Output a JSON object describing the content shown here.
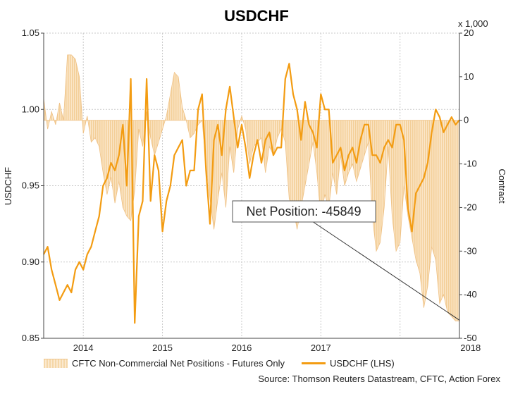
{
  "chart_data": {
    "type": "area+line",
    "title": "USDCHF",
    "ylabel_left": "USDCHF",
    "ylabel_right": "Contract",
    "right_multiplier": "x 1,000",
    "ylim_left": [
      0.85,
      1.05
    ],
    "ylim_right": [
      -50,
      20
    ],
    "yticks_left": [
      "0.85",
      "0.90",
      "0.95",
      "1.00",
      "1.05"
    ],
    "yticks_right": [
      "-50",
      "-40",
      "-30",
      "-20",
      "-10",
      "0",
      "10",
      "20"
    ],
    "x_ticks": [
      "2014",
      "2015",
      "2016",
      "2017",
      "2018"
    ],
    "xlim": [
      "2013-07",
      "2018-10"
    ],
    "grid": true,
    "legend_position": "bottom",
    "annotation": "Net Position: -45849",
    "series": [
      {
        "name": "CFTC Non-Commercial Net Positions - Futures Only",
        "kind": "area",
        "axis": "right",
        "color": "#f5d2a0",
        "x": [
          2013.5,
          2013.55,
          2013.6,
          2013.65,
          2013.7,
          2013.75,
          2013.8,
          2013.85,
          2013.9,
          2013.95,
          2014.0,
          2014.05,
          2014.1,
          2014.15,
          2014.2,
          2014.25,
          2014.3,
          2014.35,
          2014.4,
          2014.45,
          2014.5,
          2014.55,
          2014.6,
          2014.65,
          2014.7,
          2014.75,
          2014.8,
          2014.85,
          2014.9,
          2014.95,
          2015.0,
          2015.05,
          2015.1,
          2015.15,
          2015.2,
          2015.25,
          2015.3,
          2015.35,
          2015.4,
          2015.45,
          2015.5,
          2015.55,
          2015.6,
          2015.65,
          2015.7,
          2015.75,
          2015.8,
          2015.85,
          2015.9,
          2015.95,
          2016.0,
          2016.05,
          2016.1,
          2016.15,
          2016.2,
          2016.25,
          2016.3,
          2016.35,
          2016.4,
          2016.45,
          2016.5,
          2016.55,
          2016.6,
          2016.65,
          2016.7,
          2016.75,
          2016.8,
          2016.85,
          2016.9,
          2016.95,
          2017.0,
          2017.05,
          2017.1,
          2017.15,
          2017.2,
          2017.25,
          2017.3,
          2017.35,
          2017.4,
          2017.45,
          2017.5,
          2017.55,
          2017.6,
          2017.65,
          2017.7,
          2017.75,
          2017.8,
          2017.85,
          2017.9,
          2017.95,
          2018.0,
          2018.05,
          2018.1,
          2018.15,
          2018.2,
          2018.25,
          2018.3,
          2018.35,
          2018.4,
          2018.45,
          2018.5,
          2018.55,
          2018.6,
          2018.65,
          2018.7,
          2018.75
        ],
        "values": [
          5,
          -2,
          2,
          -1,
          4,
          0,
          15,
          15,
          14,
          10,
          -3,
          1,
          -5,
          -4,
          -6,
          -12,
          -17,
          -13,
          -19,
          -14,
          -20,
          -22,
          -23,
          -16,
          -2,
          -6,
          2,
          -4,
          -8,
          -5,
          -2,
          1,
          6,
          11,
          10,
          3,
          0,
          -4,
          -3,
          -1,
          0,
          -10,
          -18,
          -25,
          -18,
          -12,
          -20,
          -6,
          -12,
          -2,
          1,
          -2,
          -10,
          -6,
          -5,
          -4,
          -12,
          -6,
          -8,
          -4,
          -2,
          -5,
          -18,
          -20,
          -25,
          -20,
          -15,
          -10,
          -5,
          -12,
          -22,
          -17,
          -20,
          -12,
          -17,
          -8,
          -15,
          -12,
          -10,
          -14,
          -11,
          -8,
          -5,
          -22,
          -30,
          -28,
          -20,
          -6,
          -22,
          -30,
          -28,
          -15,
          -22,
          -27,
          -32,
          -35,
          -43,
          -38,
          -29,
          -32,
          -42,
          -40,
          -44,
          -45,
          -46,
          -46
        ],
        "last_value": -45.849
      },
      {
        "name": "USDCHF (LHS)",
        "kind": "line",
        "axis": "left",
        "color": "#f39c12",
        "x": [
          2013.5,
          2013.55,
          2013.6,
          2013.65,
          2013.7,
          2013.75,
          2013.8,
          2013.85,
          2013.9,
          2013.95,
          2014.0,
          2014.05,
          2014.1,
          2014.15,
          2014.2,
          2014.25,
          2014.3,
          2014.35,
          2014.4,
          2014.45,
          2014.5,
          2014.55,
          2014.6,
          2014.65,
          2014.7,
          2014.75,
          2014.8,
          2014.85,
          2014.9,
          2014.95,
          2015.0,
          2015.05,
          2015.1,
          2015.15,
          2015.2,
          2015.25,
          2015.3,
          2015.35,
          2015.4,
          2015.45,
          2015.5,
          2015.55,
          2015.6,
          2015.65,
          2015.7,
          2015.75,
          2015.8,
          2015.85,
          2015.9,
          2015.95,
          2016.0,
          2016.05,
          2016.1,
          2016.15,
          2016.2,
          2016.25,
          2016.3,
          2016.35,
          2016.4,
          2016.45,
          2016.5,
          2016.55,
          2016.6,
          2016.65,
          2016.7,
          2016.75,
          2016.8,
          2016.85,
          2016.9,
          2016.95,
          2017.0,
          2017.05,
          2017.1,
          2017.15,
          2017.2,
          2017.25,
          2017.3,
          2017.35,
          2017.4,
          2017.45,
          2017.5,
          2017.55,
          2017.6,
          2017.65,
          2017.7,
          2017.75,
          2017.8,
          2017.85,
          2017.9,
          2017.95,
          2018.0,
          2018.05,
          2018.1,
          2018.15,
          2018.2,
          2018.25,
          2018.3,
          2018.35,
          2018.4,
          2018.45,
          2018.5,
          2018.55,
          2018.6,
          2018.65,
          2018.7,
          2018.75
        ],
        "values": [
          0.905,
          0.91,
          0.895,
          0.885,
          0.875,
          0.88,
          0.885,
          0.88,
          0.895,
          0.9,
          0.895,
          0.905,
          0.91,
          0.92,
          0.93,
          0.95,
          0.955,
          0.965,
          0.96,
          0.97,
          0.99,
          0.95,
          1.02,
          0.86,
          0.93,
          0.94,
          1.02,
          0.94,
          0.97,
          0.96,
          0.92,
          0.94,
          0.95,
          0.97,
          0.975,
          0.98,
          0.95,
          0.96,
          0.96,
          1.0,
          1.01,
          0.96,
          0.925,
          0.98,
          0.99,
          0.97,
          1.0,
          1.015,
          0.995,
          0.975,
          0.99,
          0.975,
          0.955,
          0.97,
          0.98,
          0.965,
          0.98,
          0.985,
          0.97,
          0.975,
          0.975,
          1.02,
          1.03,
          1.01,
          1.0,
          0.98,
          1.005,
          0.99,
          0.985,
          0.975,
          1.01,
          1.0,
          1.0,
          0.965,
          0.97,
          0.975,
          0.96,
          0.97,
          0.975,
          0.965,
          0.98,
          0.99,
          0.99,
          0.97,
          0.97,
          0.965,
          0.975,
          0.98,
          0.975,
          0.99,
          0.99,
          0.98,
          0.935,
          0.92,
          0.945,
          0.95,
          0.955,
          0.965,
          0.985,
          1.0,
          0.995,
          0.985,
          0.99,
          0.995,
          0.99,
          0.993
        ],
        "last_value": 0.993
      }
    ],
    "source": "Source: Thomson Reuters Datastream, CFTC, Action Forex"
  }
}
